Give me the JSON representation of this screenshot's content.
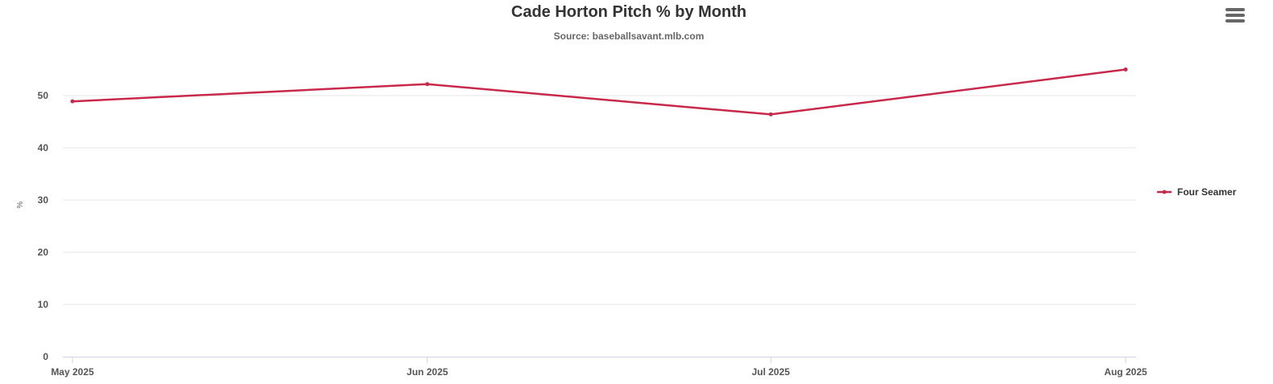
{
  "chart_data": {
    "type": "line",
    "title": "Cade Horton Pitch % by Month",
    "subtitle": "Source: baseballsavant.mlb.com",
    "ylabel": "%",
    "categories": [
      "May 2025",
      "Jun 2025",
      "Jul 2025",
      "Aug 2025"
    ],
    "x_dates": [
      "2025-05-01",
      "2025-06-01",
      "2025-07-01",
      "2025-08-01"
    ],
    "series": [
      {
        "name": "Four Seamer",
        "values": [
          48.9,
          52.2,
          46.4,
          55.0
        ],
        "color": "#c8284a"
      }
    ],
    "ylim": [
      0,
      55
    ],
    "yticks": [
      0,
      10,
      20,
      30,
      40,
      50
    ],
    "grid": true,
    "legend_position": "right"
  },
  "menu_icon": "hamburger-menu-icon"
}
